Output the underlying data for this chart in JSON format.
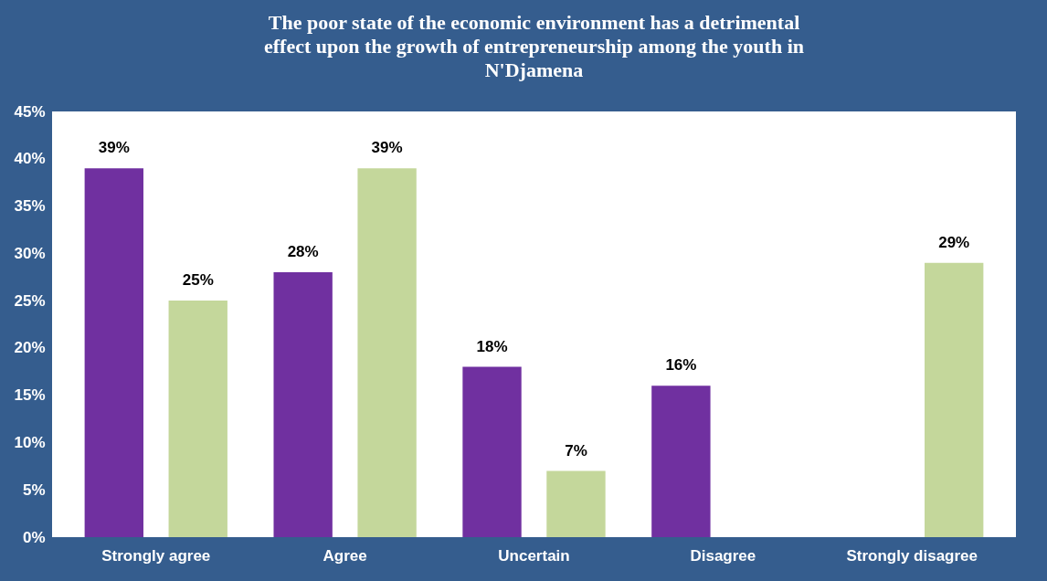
{
  "chart_data": {
    "type": "bar",
    "title": "The poor state of the economic environment has a detrimental effect upon the growth of entrepreneurship among the youth in N'Djamena",
    "categories": [
      "Strongly agree",
      "Agree",
      "Uncertain",
      "Disagree",
      "Strongly disagree"
    ],
    "series": [
      {
        "color": "#7030a0",
        "values": [
          39,
          28,
          18,
          16,
          null
        ],
        "value_labels": [
          "39%",
          "28%",
          "18%",
          "16%",
          null
        ]
      },
      {
        "color": "#c4d79b",
        "values": [
          25,
          39,
          7,
          null,
          29
        ],
        "value_labels": [
          "25%",
          "39%",
          "7%",
          null,
          "29%"
        ]
      }
    ],
    "ylim": [
      0,
      45
    ],
    "yticks": [
      {
        "value": 0,
        "label": "0%"
      },
      {
        "value": 5,
        "label": "5%"
      },
      {
        "value": 10,
        "label": "10%"
      },
      {
        "value": 15,
        "label": "15%"
      },
      {
        "value": 20,
        "label": "20%"
      },
      {
        "value": 25,
        "label": "25%"
      },
      {
        "value": 30,
        "label": "30%"
      },
      {
        "value": 35,
        "label": "35%"
      },
      {
        "value": 40,
        "label": "40%"
      },
      {
        "value": 45,
        "label": "45%"
      }
    ],
    "grid": false,
    "legend": false
  }
}
